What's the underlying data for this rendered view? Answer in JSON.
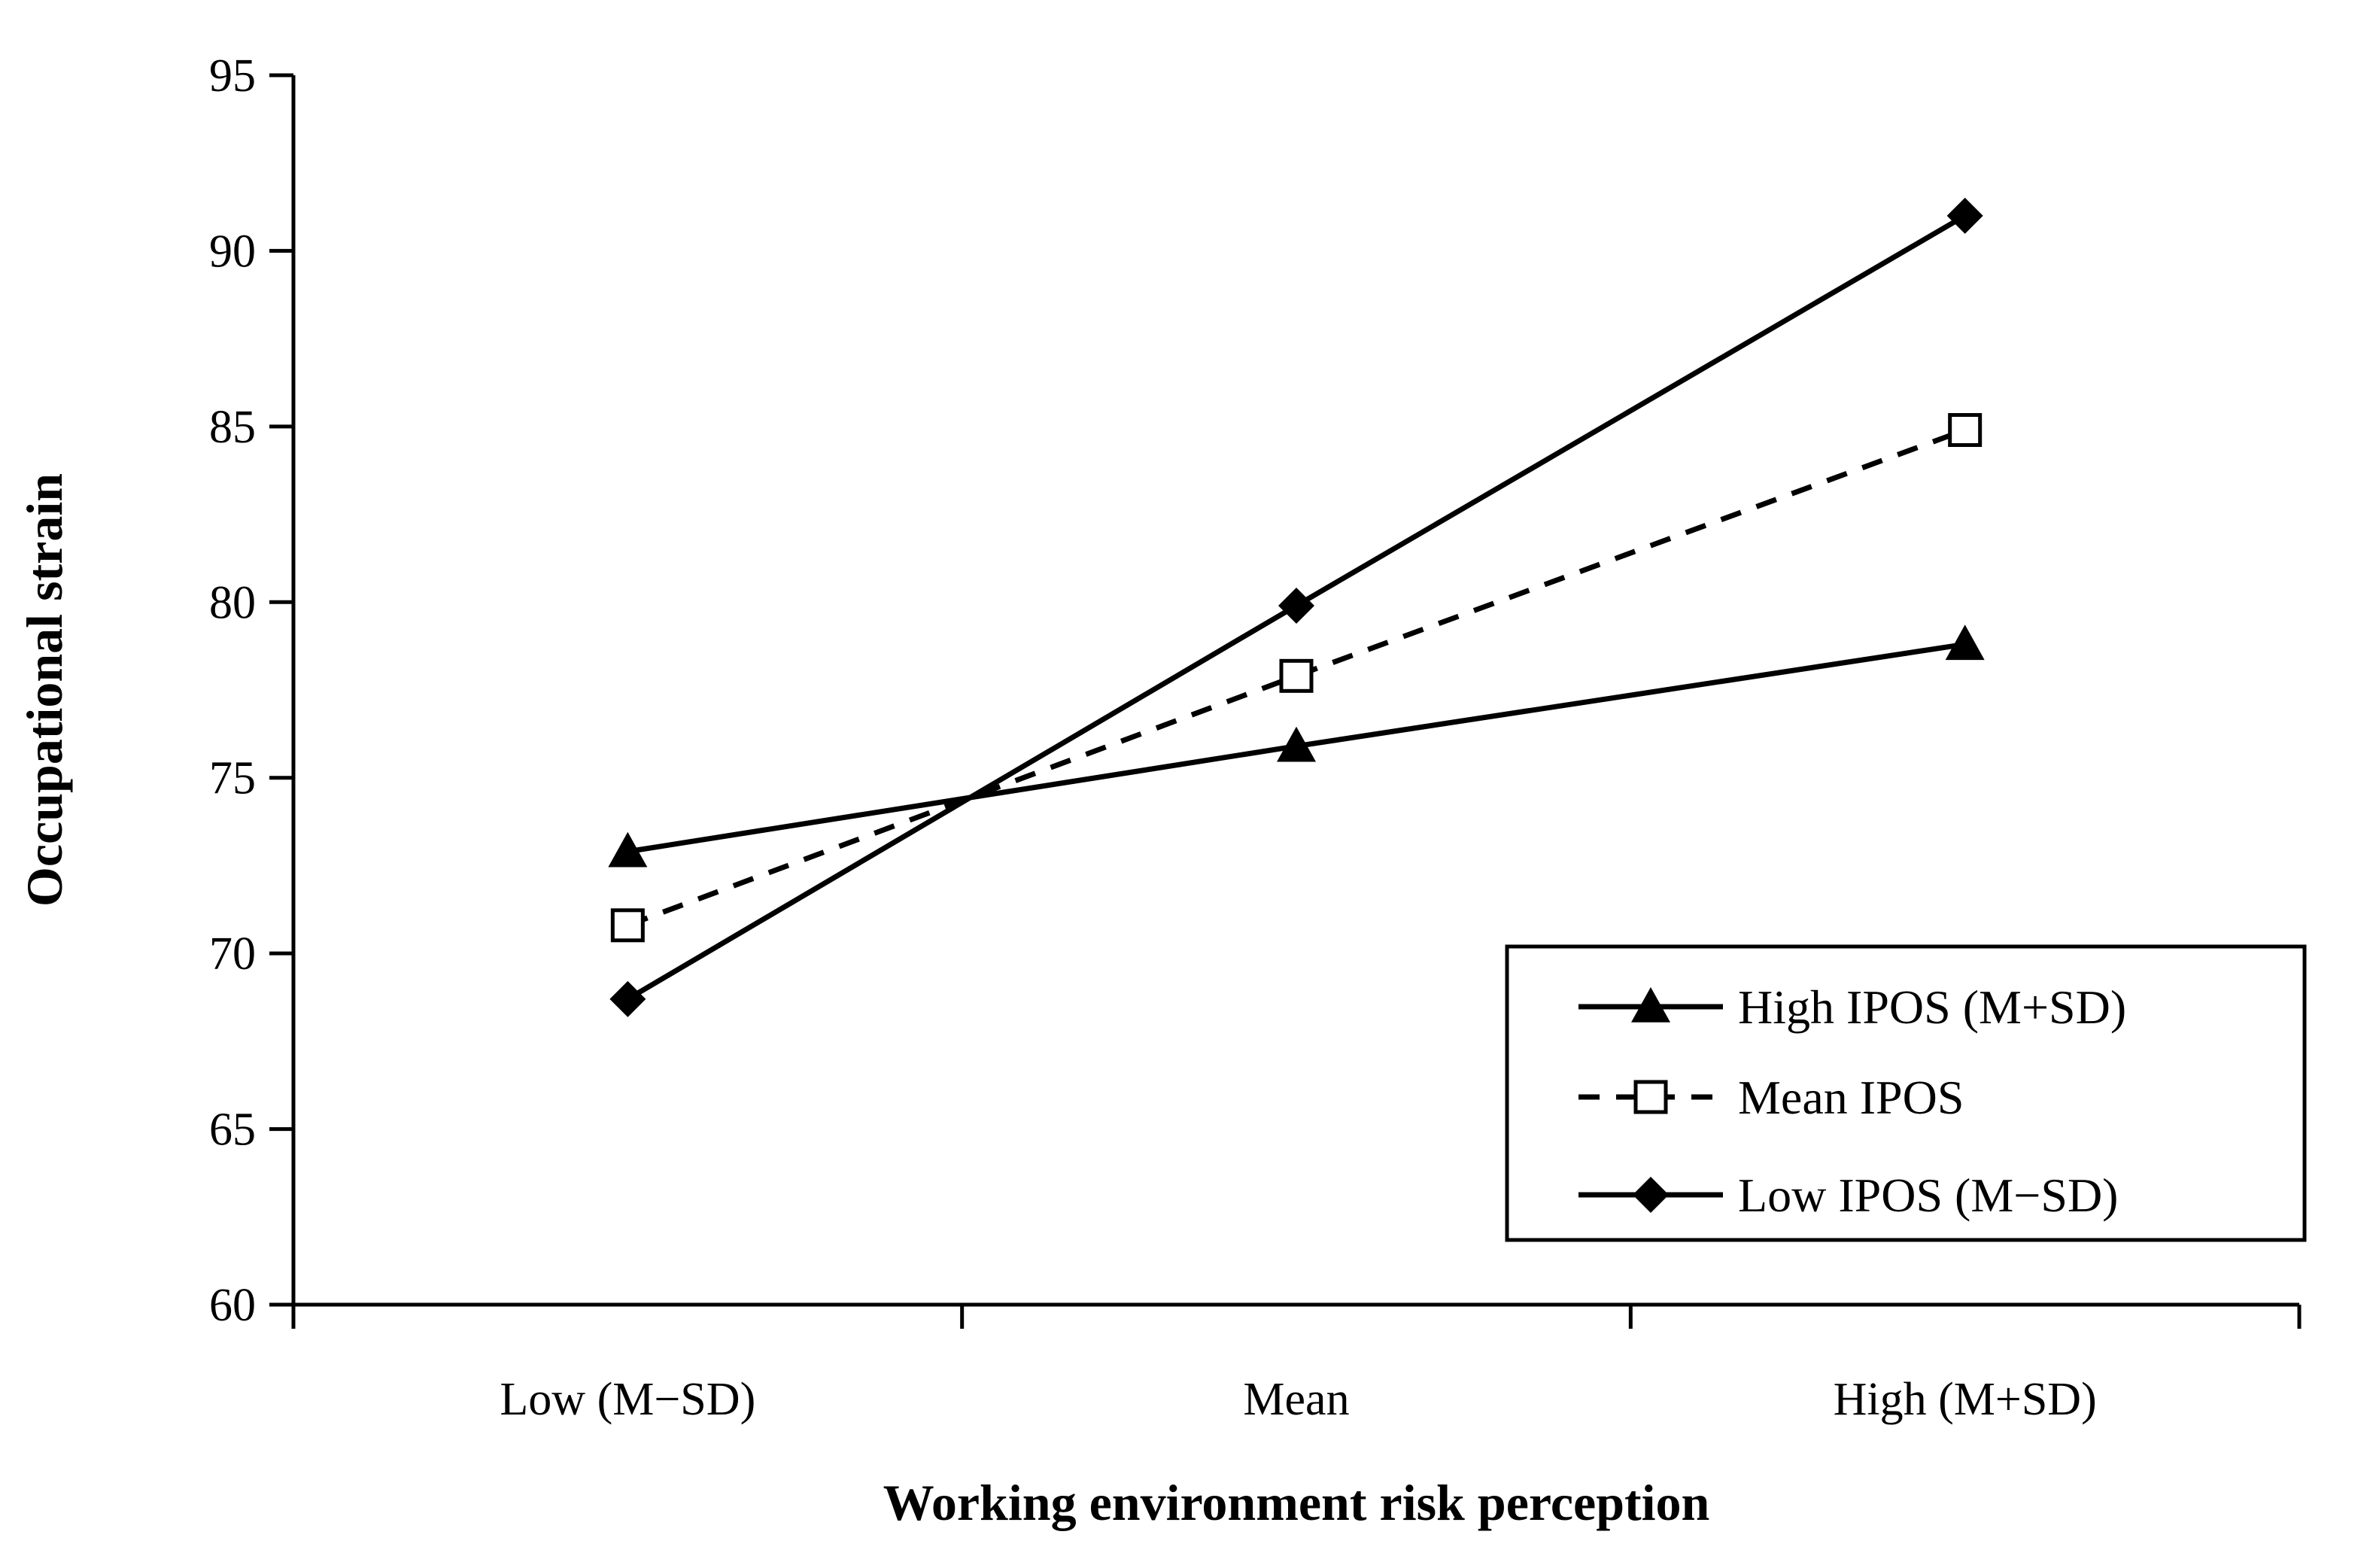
{
  "chart_data": {
    "type": "line",
    "title": "",
    "xlabel": "Working environment risk perception",
    "ylabel": "Occupational strain",
    "categories": [
      "Low (M−SD)",
      "Mean",
      "High (M+SD)"
    ],
    "ylim": [
      60,
      95
    ],
    "yticks": [
      60,
      65,
      70,
      75,
      80,
      85,
      90,
      95
    ],
    "grid": false,
    "legend_position": "bottom-right",
    "series": [
      {
        "name": "High IPOS (M+SD)",
        "marker": "triangle",
        "dash": "solid",
        "color": "#000000",
        "values": [
          72.9,
          75.9,
          78.8
        ]
      },
      {
        "name": "Mean IPOS",
        "marker": "square-open",
        "dash": "dashed",
        "color": "#000000",
        "values": [
          70.8,
          77.9,
          84.9
        ]
      },
      {
        "name": "Low IPOS (M−SD)",
        "marker": "diamond",
        "dash": "solid",
        "color": "#000000",
        "values": [
          68.7,
          79.9,
          91.0
        ]
      }
    ]
  }
}
